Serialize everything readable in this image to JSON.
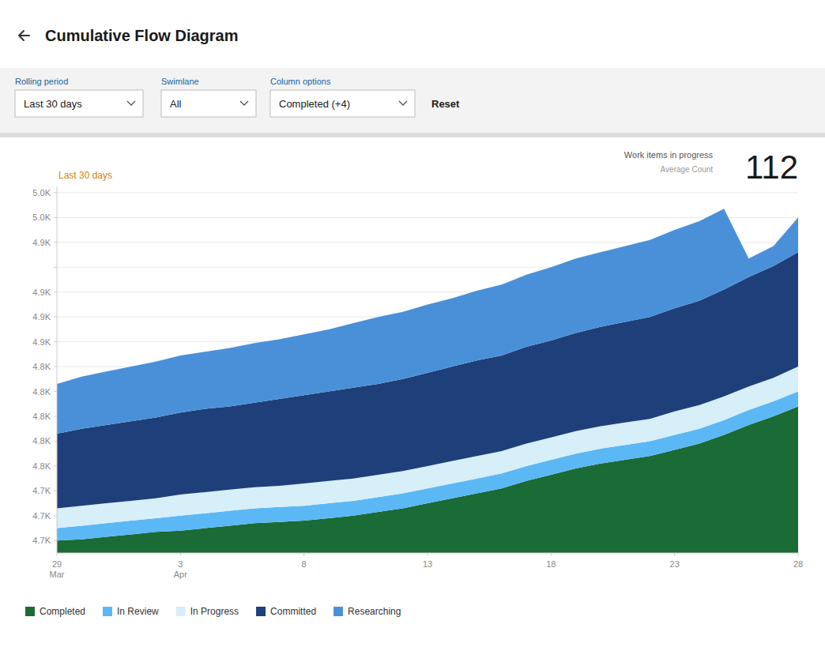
{
  "chart_data": {
    "type": "area",
    "title": "Cumulative Flow Diagram",
    "annotations": [
      "Last 30 days",
      "Work items in progress",
      "Average Count",
      "112"
    ],
    "controls": [
      {
        "label": "Rolling period",
        "value": "Last 30 days"
      },
      {
        "label": "Swimlane",
        "value": "All"
      },
      {
        "label": "Column options",
        "value": "Completed (+4)"
      }
    ],
    "buttons": [
      "Reset"
    ],
    "categories": [
      "29\nMar",
      null,
      null,
      null,
      null,
      "3\nApr",
      null,
      null,
      null,
      null,
      "8",
      null,
      null,
      null,
      null,
      "13",
      null,
      null,
      null,
      null,
      "18",
      null,
      null,
      null,
      null,
      "23",
      null,
      null,
      null,
      null,
      "28"
    ],
    "series": [
      {
        "name": "Completed",
        "color": "#1a6b35",
        "values": [
          4700,
          4701,
          4703,
          4705,
          4707,
          4708,
          4710,
          4712,
          4714,
          4715,
          4716,
          4718,
          4720,
          4723,
          4726,
          4730,
          4734,
          4738,
          4742,
          4748,
          4753,
          4758,
          4762,
          4765,
          4768,
          4773,
          4778,
          4785,
          4793,
          4800,
          4808
        ]
      },
      {
        "name": "In Review",
        "color": "#5bb8f5",
        "values": [
          4710,
          4712,
          4714,
          4716,
          4718,
          4720,
          4722,
          4724,
          4726,
          4727,
          4728,
          4730,
          4732,
          4735,
          4738,
          4742,
          4746,
          4750,
          4754,
          4760,
          4765,
          4770,
          4774,
          4777,
          4780,
          4785,
          4790,
          4797,
          4805,
          4812,
          4820
        ]
      },
      {
        "name": "In Progress",
        "color": "#d6eff8",
        "values": [
          4726,
          4728,
          4730,
          4732,
          4734,
          4737,
          4739,
          4741,
          4743,
          4744,
          4746,
          4748,
          4750,
          4753,
          4756,
          4760,
          4764,
          4768,
          4772,
          4778,
          4783,
          4788,
          4792,
          4795,
          4798,
          4804,
          4809,
          4816,
          4824,
          4831,
          4840
        ]
      },
      {
        "name": "Committed",
        "color": "#1e3f7a",
        "values": [
          4786,
          4790,
          4793,
          4796,
          4799,
          4803,
          4806,
          4808,
          4811,
          4814,
          4817,
          4820,
          4823,
          4826,
          4830,
          4835,
          4840,
          4845,
          4849,
          4856,
          4861,
          4867,
          4872,
          4876,
          4880,
          4887,
          4893,
          4902,
          4912,
          4921,
          4932
        ]
      },
      {
        "name": "Researching",
        "color": "#4a90d9",
        "values": [
          4826,
          4832,
          4836,
          4840,
          4844,
          4849,
          4852,
          4855,
          4859,
          4862,
          4866,
          4870,
          4875,
          4880,
          4884,
          4890,
          4895,
          4901,
          4906,
          4914,
          4920,
          4927,
          4932,
          4937,
          4942,
          4950,
          4957,
          4967,
          4927,
          4937,
          4960
        ]
      }
    ],
    "ylim": [
      4690,
      4985
    ],
    "yticks": [
      {
        "value": 4700,
        "label": "4.7K"
      },
      {
        "value": 4720,
        "label": "4.7K"
      },
      {
        "value": 4740,
        "label": "4.7K"
      },
      {
        "value": 4760,
        "label": "4.8K"
      },
      {
        "value": 4780,
        "label": "4.8K"
      },
      {
        "value": 4800,
        "label": "4.8K"
      },
      {
        "value": 4820,
        "label": "4.8K"
      },
      {
        "value": 4840,
        "label": "4.8K"
      },
      {
        "value": 4860,
        "label": "4.9K"
      },
      {
        "value": 4880,
        "label": "4.9K"
      },
      {
        "value": 4900,
        "label": "4.9K"
      },
      {
        "value": 4920,
        "label": null
      },
      {
        "value": 4940,
        "label": "4.9K"
      },
      {
        "value": 4960,
        "label": "5.0K"
      },
      {
        "value": 4980,
        "label": "5.0K"
      }
    ],
    "grid": true,
    "legend": "bottom"
  }
}
